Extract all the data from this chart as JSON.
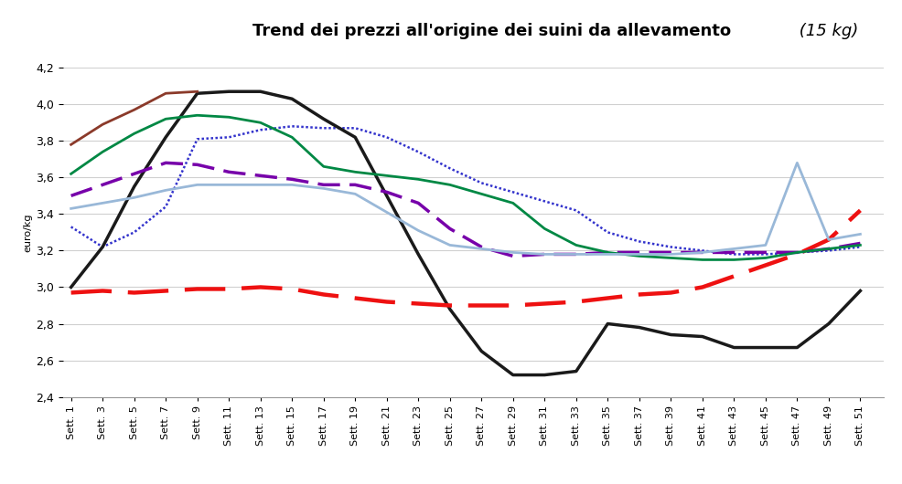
{
  "title_main": "Trend dei prezzi all'origine dei suini da allevamento",
  "title_italic": " (15 kg)",
  "ylabel": "euro/kg",
  "ylim": [
    2.4,
    4.2
  ],
  "yticks": [
    2.4,
    2.6,
    2.8,
    3.0,
    3.2,
    3.4,
    3.6,
    3.8,
    4.0,
    4.2
  ],
  "weeks": [
    1,
    3,
    5,
    7,
    9,
    11,
    13,
    15,
    17,
    19,
    21,
    23,
    25,
    27,
    29,
    31,
    33,
    35,
    37,
    39,
    41,
    43,
    45,
    47,
    49,
    51
  ],
  "series": {
    "2006": {
      "color": "#3333cc",
      "linestyle": "densely_dotted",
      "linewidth": 1.8,
      "values": [
        3.33,
        3.22,
        3.3,
        3.44,
        3.81,
        3.82,
        3.86,
        3.88,
        3.87,
        3.87,
        3.82,
        3.74,
        3.65,
        3.57,
        3.52,
        3.47,
        3.42,
        3.3,
        3.25,
        3.22,
        3.2,
        3.18,
        3.18,
        3.19,
        3.2,
        3.22
      ]
    },
    "2007": {
      "color": "#1a1a1a",
      "linestyle": "solid",
      "linewidth": 2.5,
      "values": [
        3.0,
        3.22,
        3.55,
        3.82,
        4.06,
        4.07,
        4.07,
        4.03,
        3.92,
        3.82,
        3.5,
        3.18,
        2.88,
        2.65,
        2.52,
        2.52,
        2.54,
        2.8,
        2.78,
        2.74,
        2.73,
        2.67,
        2.67,
        2.67,
        2.8,
        2.98
      ]
    },
    "2008": {
      "color": "#ee1111",
      "linestyle": "long_dashed",
      "linewidth": 3.2,
      "values": [
        2.97,
        2.98,
        2.97,
        2.98,
        2.99,
        2.99,
        3.0,
        2.99,
        2.96,
        2.94,
        2.92,
        2.91,
        2.9,
        2.9,
        2.9,
        2.91,
        2.92,
        2.94,
        2.96,
        2.97,
        3.0,
        3.06,
        3.12,
        3.18,
        3.26,
        3.42
      ]
    },
    "2009": {
      "color": "#7700aa",
      "linestyle": "medium_dashed",
      "linewidth": 2.5,
      "values": [
        3.5,
        3.56,
        3.62,
        3.68,
        3.67,
        3.63,
        3.61,
        3.59,
        3.56,
        3.56,
        3.52,
        3.46,
        3.32,
        3.22,
        3.17,
        3.18,
        3.18,
        3.19,
        3.19,
        3.19,
        3.19,
        3.19,
        3.19,
        3.19,
        3.21,
        3.24
      ]
    },
    "2010": {
      "color": "#008844",
      "linestyle": "solid",
      "linewidth": 2.0,
      "values": [
        3.62,
        3.74,
        3.84,
        3.92,
        3.94,
        3.93,
        3.9,
        3.82,
        3.66,
        3.63,
        3.61,
        3.59,
        3.56,
        3.51,
        3.46,
        3.32,
        3.23,
        3.19,
        3.17,
        3.16,
        3.15,
        3.15,
        3.16,
        3.19,
        3.21,
        3.23
      ]
    },
    "2011": {
      "color": "#99b8d8",
      "linestyle": "solid",
      "linewidth": 2.0,
      "values": [
        3.43,
        3.46,
        3.49,
        3.53,
        3.56,
        3.56,
        3.56,
        3.56,
        3.54,
        3.51,
        3.41,
        3.31,
        3.23,
        3.21,
        3.19,
        3.18,
        3.18,
        3.18,
        3.18,
        3.18,
        3.19,
        3.21,
        3.23,
        3.68,
        3.26,
        3.29
      ]
    },
    "2012": {
      "color": "#8b3a2a",
      "linestyle": "solid",
      "linewidth": 2.0,
      "values": [
        3.78,
        3.89,
        3.97,
        4.06,
        4.07,
        null,
        null,
        null,
        null,
        null,
        null,
        null,
        null,
        null,
        null,
        null,
        null,
        null,
        null,
        null,
        null,
        null,
        null,
        null,
        null,
        null
      ]
    }
  },
  "background_color": "#ffffff",
  "title_bg_color": "#c8c8c8",
  "grid_color": "#d0d0d0"
}
